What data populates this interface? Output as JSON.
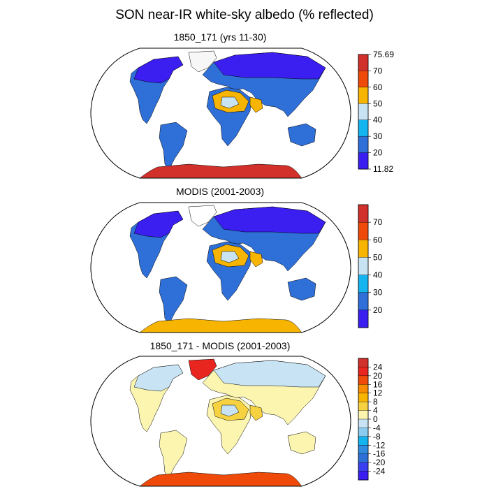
{
  "title": "SON near-IR white-sky albedo (% reflected)",
  "panels": [
    {
      "id": "model",
      "title": "1850_171 (yrs 11-30)",
      "colorbar": {
        "labels": [
          "75.69",
          "70",
          "60",
          "50",
          "40",
          "30",
          "20",
          "11.82"
        ],
        "colors": [
          "#d2302a",
          "#f04a0a",
          "#f7b400",
          "#c8e4f4",
          "#14b4f0",
          "#2f6fd8",
          "#3a1ff0"
        ]
      },
      "fills": {
        "land": "#2f6fd8",
        "north": "#3a1ff0",
        "desert": "#f7b400",
        "desert_core": "#c8e4f4",
        "antarctica": "#d2302a",
        "greenland": "#f7f7f7"
      }
    },
    {
      "id": "modis",
      "title": "MODIS (2001-2003)",
      "colorbar": {
        "labels": [
          "70",
          "60",
          "50",
          "40",
          "30",
          "20"
        ],
        "colors": [
          "#d2302a",
          "#f04a0a",
          "#f7b400",
          "#c8e4f4",
          "#14b4f0",
          "#2f6fd8",
          "#3a1ff0"
        ]
      },
      "fills": {
        "land": "#2f6fd8",
        "north": "#3a1ff0",
        "desert": "#f7b400",
        "desert_core": "#c8e4f4",
        "antarctica": "#f7b400",
        "greenland": "#ffffff"
      }
    },
    {
      "id": "diff",
      "title": "1850_171 - MODIS (2001-2003)",
      "colorbar": {
        "labels": [
          "24",
          "20",
          "16",
          "12",
          "8",
          "4",
          "0",
          "-4",
          "-8",
          "-12",
          "-16",
          "-20",
          "-24"
        ],
        "colors": [
          "#d2302a",
          "#e8251e",
          "#f04a0a",
          "#f78c00",
          "#f7b400",
          "#f7d240",
          "#fcf5b0",
          "#c8e4f4",
          "#8ccbf0",
          "#14b4f0",
          "#2f8be0",
          "#2f6fd8",
          "#3a40f0",
          "#3a1ff0"
        ]
      },
      "fills": {
        "land": "#fcf5b0",
        "north": "#c8e4f4",
        "desert": "#f7d240",
        "desert_core": "#c8e4f4",
        "antarctica": "#f04a0a",
        "greenland": "#e8251e"
      }
    }
  ]
}
